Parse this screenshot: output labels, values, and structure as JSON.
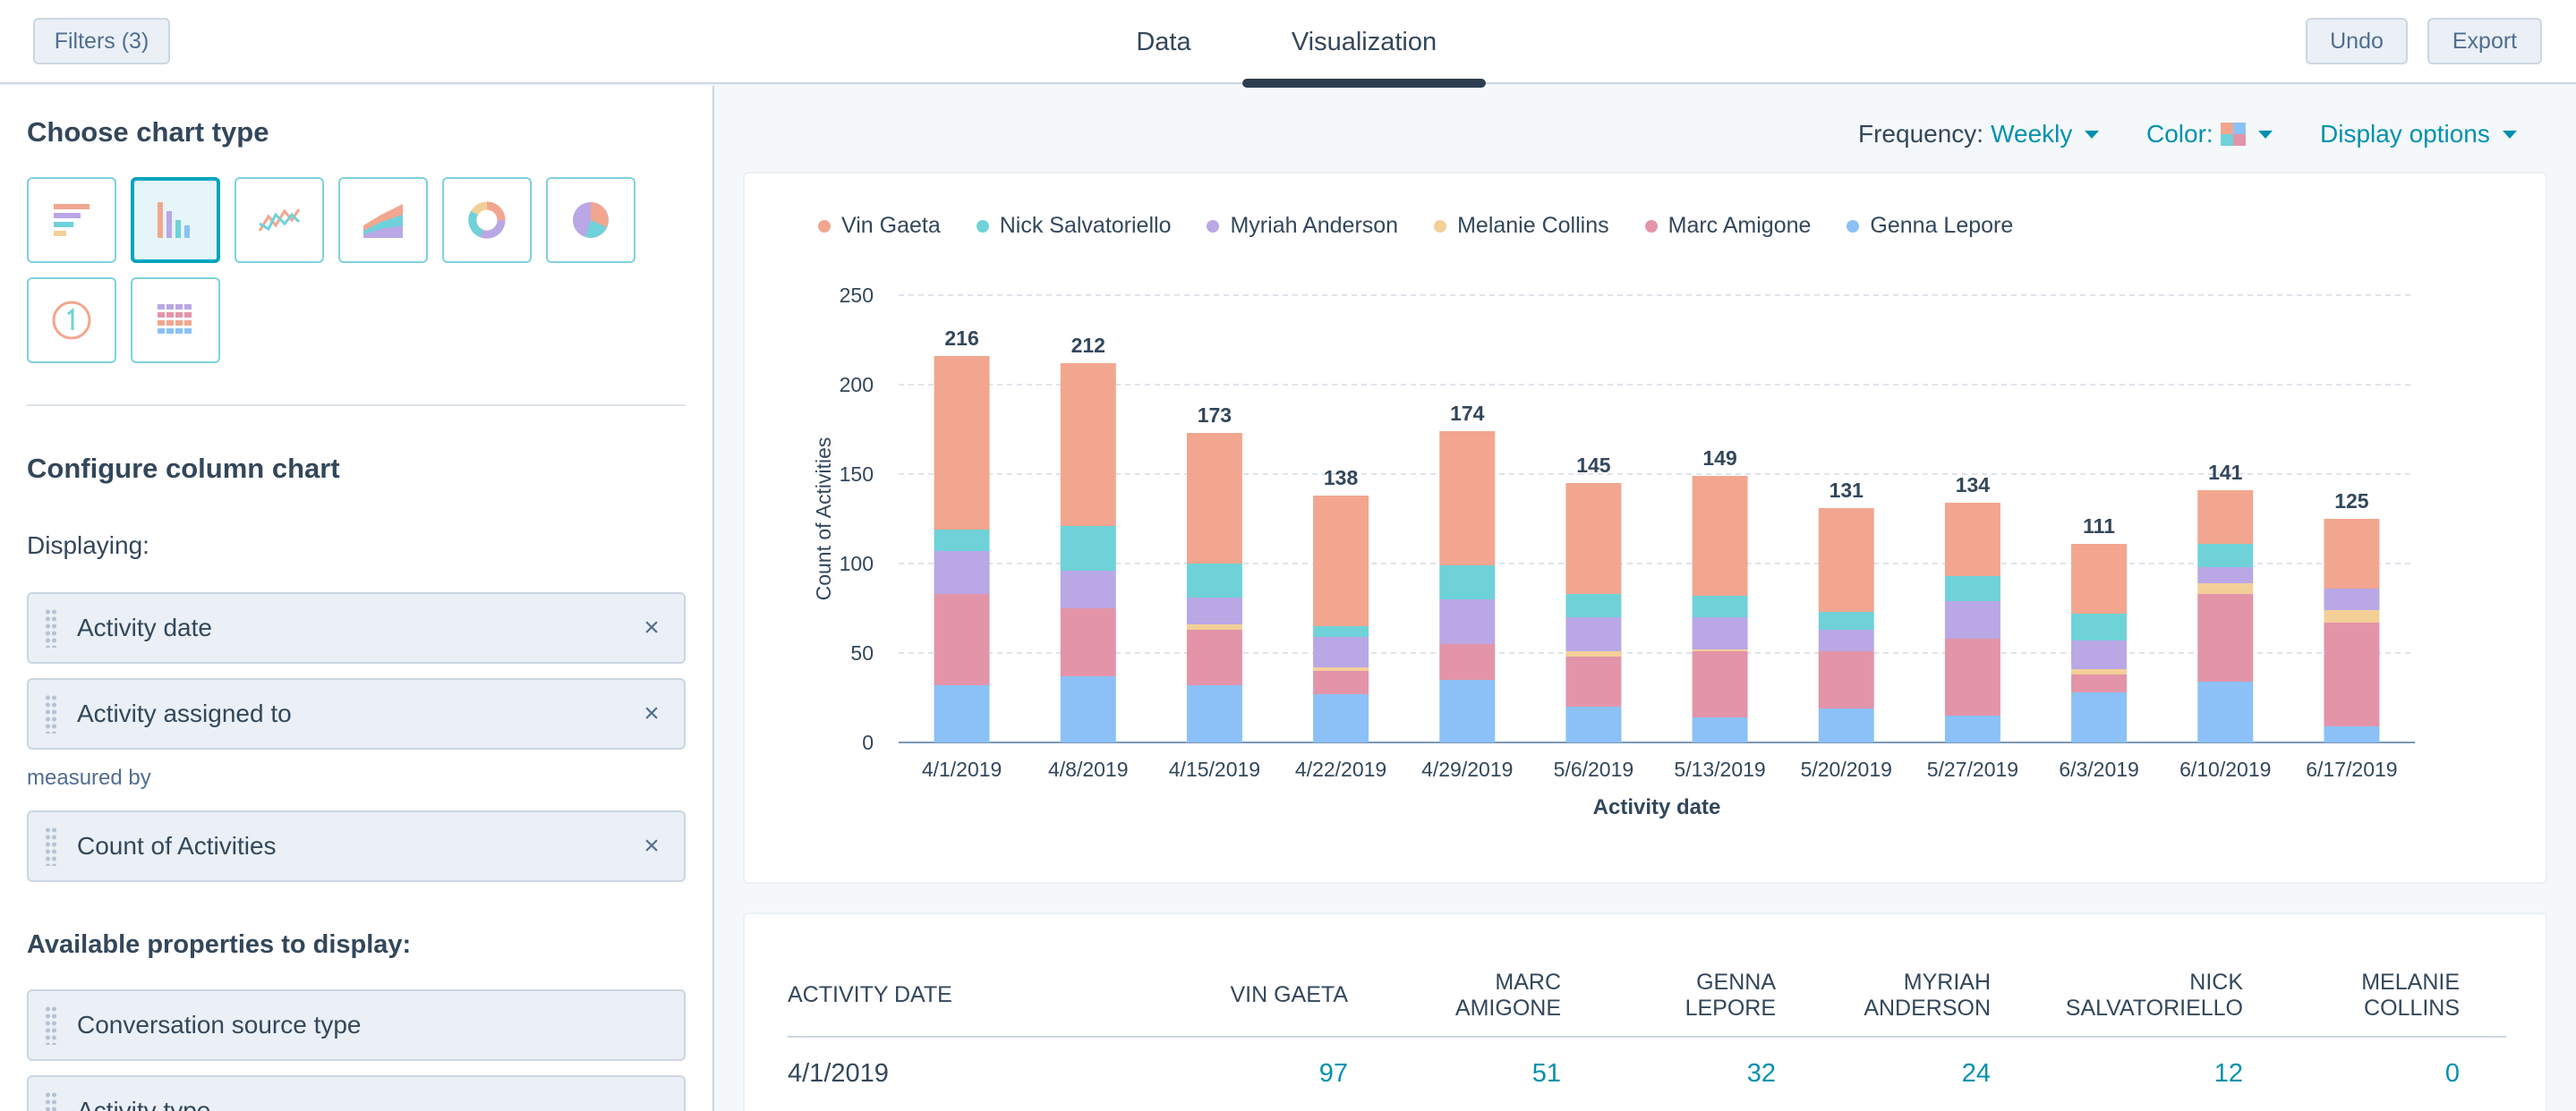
{
  "topbar": {
    "filters_label": "Filters (3)",
    "tabs": [
      {
        "label": "Data"
      },
      {
        "label": "Visualization"
      }
    ],
    "undo_label": "Undo",
    "export_label": "Export"
  },
  "sidebar": {
    "choose_title": "Choose chart type",
    "chart_types": [
      {
        "icon": "horizontal-bar-chart-icon",
        "selected": false
      },
      {
        "icon": "column-chart-icon",
        "selected": true
      },
      {
        "icon": "line-chart-icon",
        "selected": false
      },
      {
        "icon": "area-chart-icon",
        "selected": false
      },
      {
        "icon": "donut-chart-icon",
        "selected": false
      },
      {
        "icon": "pie-chart-icon",
        "selected": false
      },
      {
        "icon": "single-value-icon",
        "selected": false
      },
      {
        "icon": "table-icon",
        "selected": false
      }
    ],
    "configure_title": "Configure column chart",
    "displaying_label": "Displaying:",
    "displaying_items": [
      "Activity date",
      "Activity assigned to"
    ],
    "measured_by_label": "measured by",
    "measure_item": "Count of Activities",
    "available_label": "Available properties to display:",
    "available_items": [
      "Conversation source type",
      "Activity type"
    ],
    "remove_glyph": "×"
  },
  "controls": {
    "frequency_label": "Frequency:",
    "frequency_value": "Weekly",
    "color_label": "Color:",
    "display_options_label": "Display options"
  },
  "colors": {
    "accent": "#0091ae",
    "vin": "#f2a68f",
    "nick": "#6fd2d8",
    "myriah": "#b9a7e6",
    "melanie": "#f3cf98",
    "marc": "#e394a8",
    "genna": "#8bc1f7"
  },
  "chart_data": {
    "type": "bar",
    "stacked": true,
    "categories": [
      "4/1/2019",
      "4/8/2019",
      "4/15/2019",
      "4/22/2019",
      "4/29/2019",
      "5/6/2019",
      "5/13/2019",
      "5/20/2019",
      "5/27/2019",
      "6/3/2019",
      "6/10/2019",
      "6/17/2019"
    ],
    "totals": [
      216,
      212,
      173,
      138,
      174,
      145,
      149,
      131,
      134,
      111,
      141,
      125
    ],
    "series": [
      {
        "name": "Genna Lepore",
        "color": "#8bc1f7",
        "values": [
          32,
          37,
          32,
          27,
          35,
          20,
          14,
          19,
          15,
          28,
          34,
          9
        ]
      },
      {
        "name": "Marc Amigone",
        "color": "#e394a8",
        "values": [
          51,
          38,
          31,
          13,
          20,
          28,
          37,
          32,
          43,
          10,
          49,
          58
        ]
      },
      {
        "name": "Melanie Collins",
        "color": "#f3cf98",
        "values": [
          0,
          0,
          3,
          2,
          0,
          3,
          1,
          0,
          0,
          3,
          6,
          7
        ]
      },
      {
        "name": "Myriah Anderson",
        "color": "#b9a7e6",
        "values": [
          24,
          21,
          15,
          17,
          25,
          19,
          18,
          12,
          21,
          16,
          9,
          12
        ]
      },
      {
        "name": "Nick Salvatoriello",
        "color": "#6fd2d8",
        "values": [
          12,
          25,
          19,
          6,
          19,
          13,
          12,
          10,
          14,
          15,
          13,
          0
        ]
      },
      {
        "name": "Vin Gaeta",
        "color": "#f2a68f",
        "values": [
          97,
          91,
          73,
          73,
          75,
          62,
          67,
          58,
          41,
          39,
          30,
          39
        ]
      }
    ],
    "legend": [
      "Vin Gaeta",
      "Nick Salvatoriello",
      "Myriah Anderson",
      "Melanie Collins",
      "Marc Amigone",
      "Genna Lepore"
    ],
    "legend_position": "top-left",
    "xlabel": "Activity date",
    "ylabel": "Count of Activities",
    "ylim": [
      0,
      250
    ],
    "yticks": [
      0,
      50,
      100,
      150,
      200,
      250
    ],
    "grid": true
  },
  "table": {
    "headers": [
      {
        "lines": [
          "ACTIVITY DATE"
        ]
      },
      {
        "lines": [
          "VIN GAETA"
        ]
      },
      {
        "lines": [
          "MARC",
          "AMIGONE"
        ]
      },
      {
        "lines": [
          "GENNA",
          "LEPORE"
        ]
      },
      {
        "lines": [
          "MYRIAH",
          "ANDERSON"
        ]
      },
      {
        "lines": [
          "NICK",
          "SALVATORIELLO"
        ]
      },
      {
        "lines": [
          "MELANIE",
          "COLLINS"
        ]
      }
    ],
    "rows": [
      {
        "date": "4/1/2019",
        "values": [
          "97",
          "51",
          "32",
          "24",
          "12",
          "0"
        ]
      }
    ]
  }
}
